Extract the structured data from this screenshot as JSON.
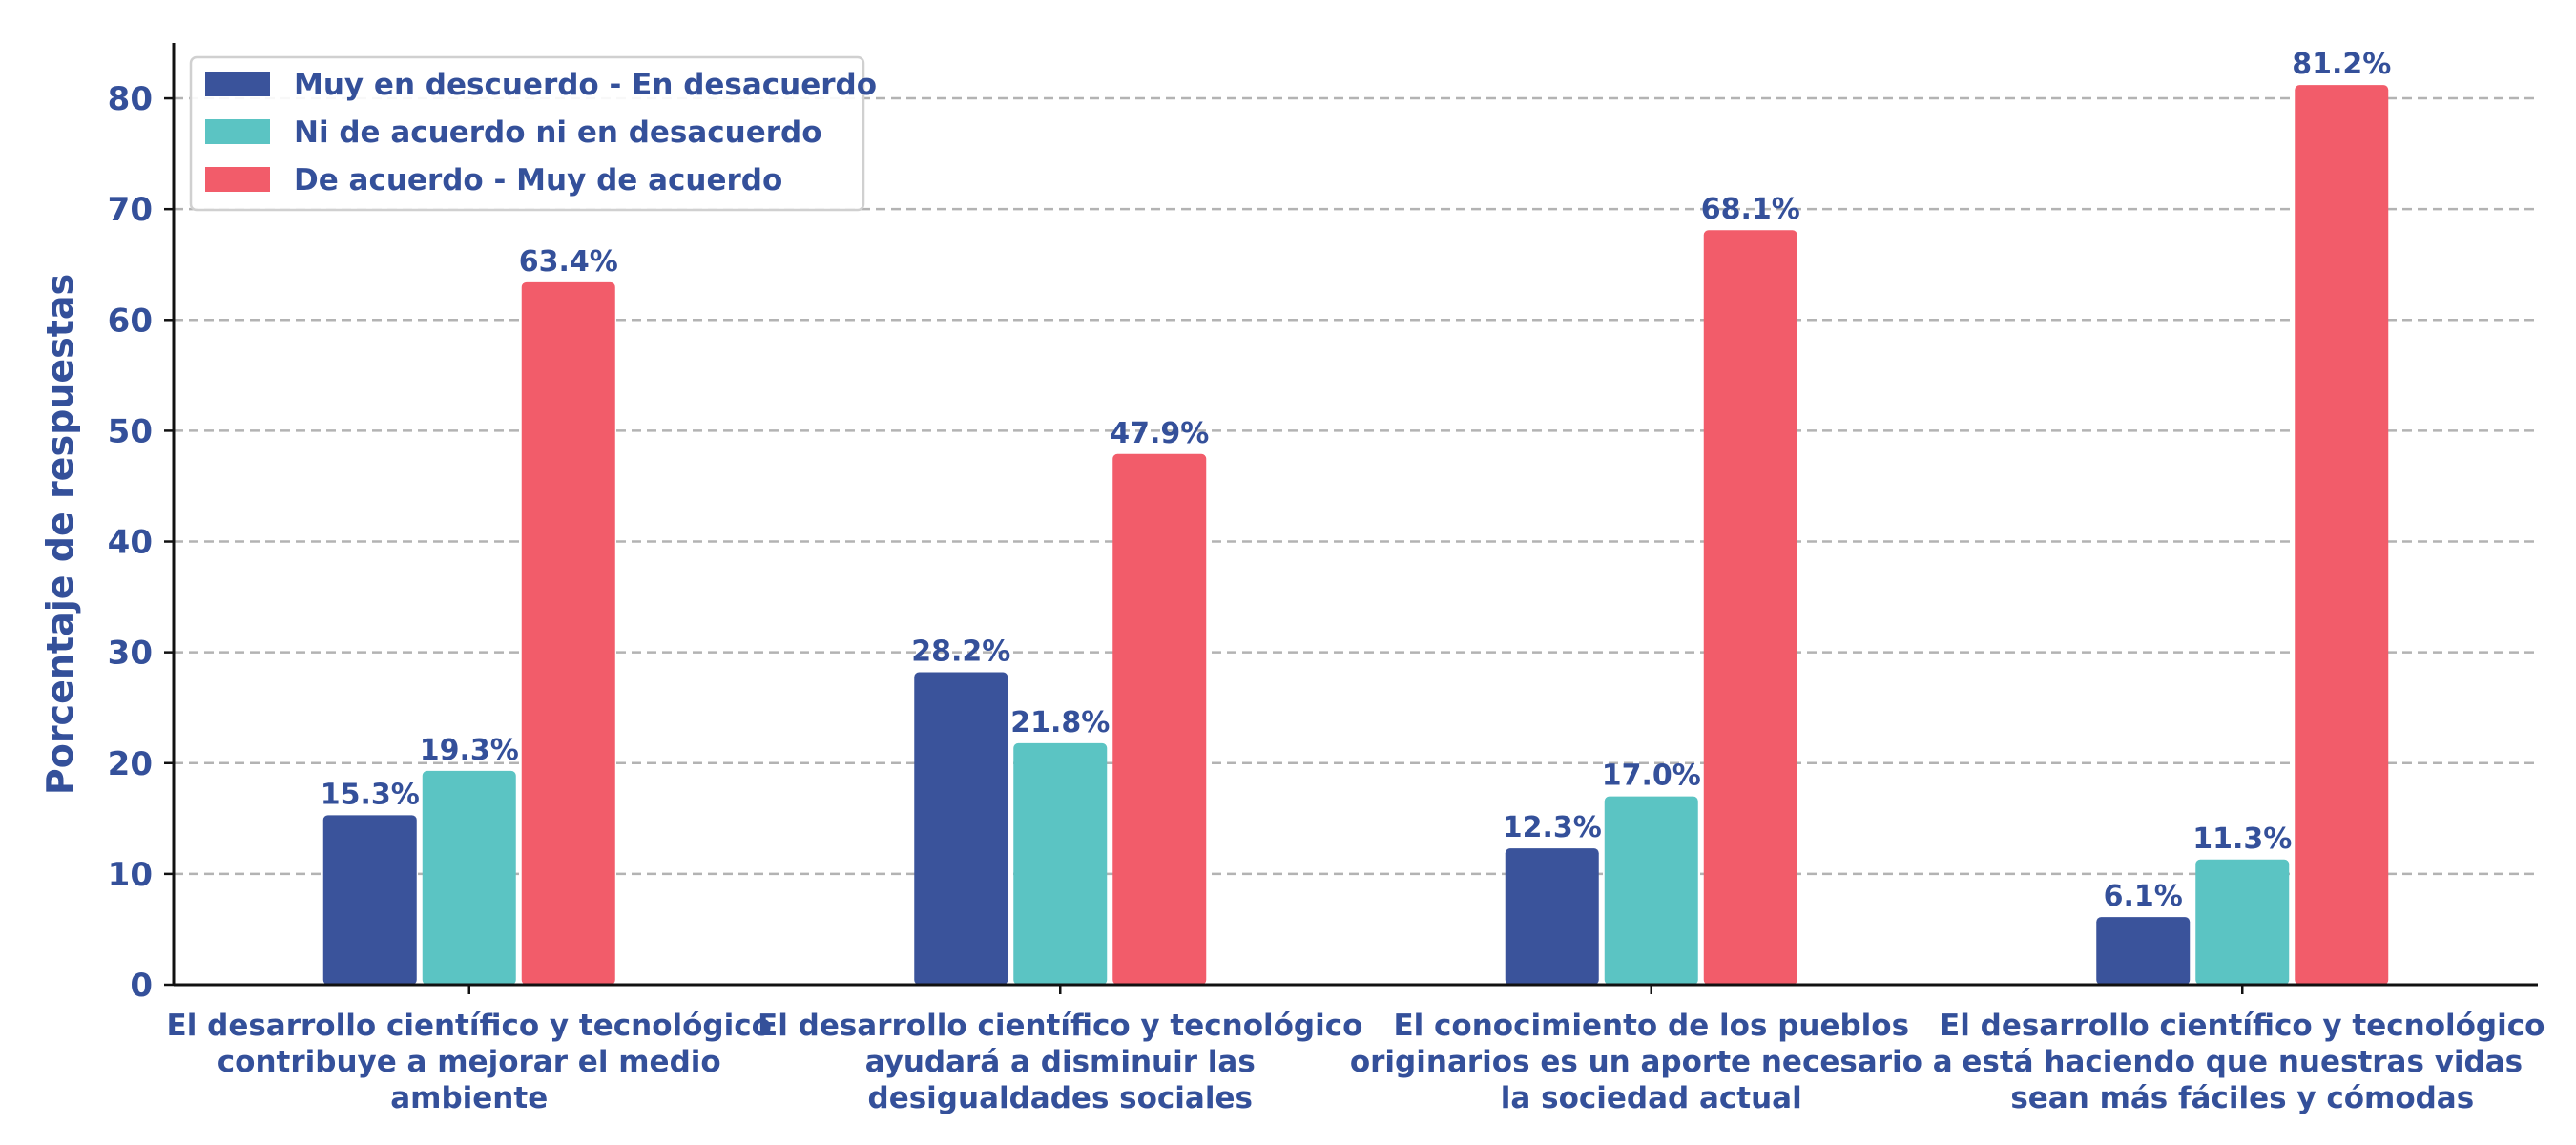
{
  "chart_data": {
    "type": "bar",
    "title": "",
    "xlabel": "",
    "ylabel": "Porcentaje de respuestas",
    "ylim": [
      0,
      85
    ],
    "yticks": [
      0,
      10,
      20,
      30,
      40,
      50,
      60,
      70,
      80
    ],
    "grid": "horizontal dashed",
    "legend_position": "top-left",
    "categories": [
      [
        "El desarrollo científico y tecnológico",
        "contribuye a mejorar el medio",
        "ambiente"
      ],
      [
        "El desarrollo científico y tecnológico",
        "ayudará a disminuir las",
        "desigualdades sociales"
      ],
      [
        "El conocimiento de los pueblos",
        "originarios es un aporte necesario a",
        "la sociedad actual"
      ],
      [
        "El desarrollo científico y tecnológico",
        "está haciendo que nuestras vidas",
        "sean más fáciles y cómodas"
      ]
    ],
    "series": [
      {
        "name": "Muy en descuerdo - En desacuerdo",
        "color": "#3a539b",
        "values": [
          15.3,
          28.2,
          12.3,
          6.1
        ],
        "labels": [
          "15.3%",
          "28.2%",
          "12.3%",
          "6.1%"
        ]
      },
      {
        "name": "Ni de acuerdo ni en desacuerdo",
        "color": "#5bc4c3",
        "values": [
          19.3,
          21.8,
          17.0,
          11.3
        ],
        "labels": [
          "19.3%",
          "21.8%",
          "17.0%",
          "11.3%"
        ]
      },
      {
        "name": "De acuerdo - Muy de acuerdo",
        "color": "#f25c6a",
        "values": [
          63.4,
          47.9,
          68.1,
          81.2
        ],
        "labels": [
          "63.4%",
          "47.9%",
          "68.1%",
          "81.2%"
        ]
      }
    ]
  }
}
